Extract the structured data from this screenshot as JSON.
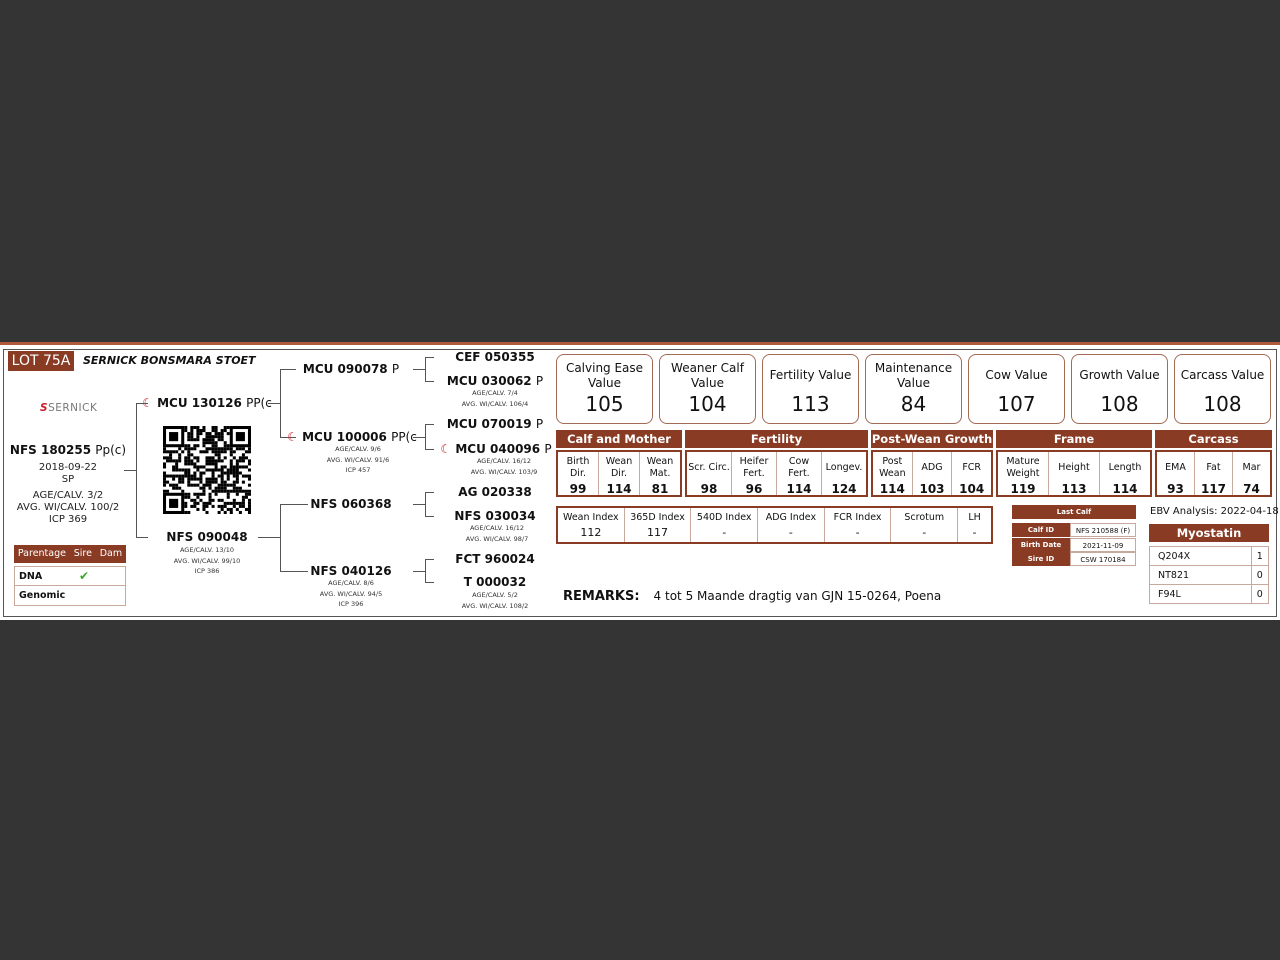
{
  "header": {
    "lot": "LOT 75A",
    "title": "SERNICK BONSMARA STOET",
    "logo": "SERNICK"
  },
  "colors": {
    "brand": "#8a3b24",
    "check": "#3aa62a"
  },
  "animal": {
    "id": "NFS 180255",
    "suffix": "Pp(c)",
    "dob": "2018-09-22",
    "type": "SP",
    "age_calv": "AGE/CALV. 3/2",
    "avg": "AVG. WI/CALV. 100/2",
    "icp": "ICP 369"
  },
  "parentage": {
    "headers": [
      "Parentage",
      "Sire",
      "Dam"
    ],
    "rows": [
      {
        "label": "DNA",
        "sire": "✔",
        "dam": ""
      },
      {
        "label": "Genomic",
        "sire": "",
        "dam": ""
      }
    ]
  },
  "pedigree": {
    "sire": {
      "id": "MCU 130126",
      "suffix": "PP(c",
      "icon": "sernick-mark-icon"
    },
    "dam": {
      "id": "NFS 090048",
      "l1": "AGE/CALV. 13/10",
      "l2": "AVG. WI/CALV. 99/10",
      "l3": "ICP 386"
    },
    "ss": {
      "id": "MCU 090078",
      "suffix": "P"
    },
    "sd": {
      "id": "MCU 100006",
      "suffix": "PP(c",
      "l1": "AGE/CALV. 9/6",
      "l2": "AVG. WI/CALV. 91/6",
      "l3": "ICP 457"
    },
    "ds": {
      "id": "NFS 060368"
    },
    "dd": {
      "id": "NFS 040126",
      "l1": "AGE/CALV. 8/6",
      "l2": "AVG. WI/CALV. 94/5",
      "l3": "ICP 396"
    },
    "sss": {
      "id": "CEF 050355"
    },
    "ssd": {
      "id": "MCU 030062",
      "suffix": "P",
      "l1": "AGE/CALV. 7/4",
      "l2": "AVG. WI/CALV. 106/4"
    },
    "sds": {
      "id": "MCU 070019",
      "suffix": "P"
    },
    "sdd": {
      "id": "MCU 040096",
      "suffix": "P",
      "l1": "AGE/CALV. 16/12",
      "l2": "AVG. WI/CALV. 103/9"
    },
    "dss": {
      "id": "AG 020338"
    },
    "dsd": {
      "id": "NFS 030034",
      "l1": "AGE/CALV. 16/12",
      "l2": "AVG. WI/CALV. 98/7"
    },
    "dds": {
      "id": "FCT 960024"
    },
    "ddd": {
      "id": "T 000032",
      "l1": "AGE/CALV. 5/2",
      "l2": "AVG. WI/CALV. 108/2"
    }
  },
  "values": [
    {
      "t": "Calving Ease Value",
      "v": "105"
    },
    {
      "t": "Weaner Calf Value",
      "v": "104"
    },
    {
      "t": "Fertility Value",
      "v": "113"
    },
    {
      "t": "Maintenance Value",
      "v": "84"
    },
    {
      "t": "Cow Value",
      "v": "107"
    },
    {
      "t": "Growth Value",
      "v": "108"
    },
    {
      "t": "Carcass Value",
      "v": "108"
    }
  ],
  "groups": [
    {
      "name": "Calf and Mother",
      "cells": [
        {
          "h": "Birth Dir.",
          "v": "99"
        },
        {
          "h": "Wean Dir.",
          "v": "114"
        },
        {
          "h": "Wean Mat.",
          "v": "81"
        }
      ]
    },
    {
      "name": "Fertility",
      "cells": [
        {
          "h": "Scr. Circ.",
          "v": "98"
        },
        {
          "h": "Heifer Fert.",
          "v": "96"
        },
        {
          "h": "Cow Fert.",
          "v": "114"
        },
        {
          "h": "Longev.",
          "v": "124"
        }
      ]
    },
    {
      "name": "Post-Wean Growth",
      "cells": [
        {
          "h": "Post Wean",
          "v": "114"
        },
        {
          "h": "ADG",
          "v": "103"
        },
        {
          "h": "FCR",
          "v": "104"
        }
      ]
    },
    {
      "name": "Frame",
      "cells": [
        {
          "h": "Mature Weight",
          "v": "119"
        },
        {
          "h": "Height",
          "v": "113"
        },
        {
          "h": "Length",
          "v": "114"
        }
      ]
    },
    {
      "name": "Carcass",
      "cells": [
        {
          "h": "EMA",
          "v": "93"
        },
        {
          "h": "Fat",
          "v": "117"
        },
        {
          "h": "Mar",
          "v": "74"
        }
      ]
    }
  ],
  "indexes": [
    {
      "h": "Wean Index",
      "v": "112"
    },
    {
      "h": "365D Index",
      "v": "117"
    },
    {
      "h": "540D Index",
      "v": "-"
    },
    {
      "h": "ADG Index",
      "v": "-"
    },
    {
      "h": "FCR Index",
      "v": "-"
    },
    {
      "h": "Scrotum",
      "v": "-"
    },
    {
      "h": "LH",
      "v": "-"
    }
  ],
  "last_calf": {
    "title": "Last Calf",
    "rows": [
      {
        "k": "Calf ID",
        "v": "NFS 210588 (F)"
      },
      {
        "k": "Birth Date",
        "v": "2021-11-09"
      },
      {
        "k": "Sire ID",
        "v": "CSW 170184"
      }
    ]
  },
  "ebv": "EBV Analysis: 2022-04-18",
  "myostatin": {
    "title": "Myostatin",
    "rows": [
      {
        "k": "Q204X",
        "v": "1"
      },
      {
        "k": "NT821",
        "v": "0"
      },
      {
        "k": "F94L",
        "v": "0"
      }
    ]
  },
  "remarks": {
    "label": "REMARKS:",
    "text": "4 tot 5 Maande dragtig van GJN 15-0264, Poena"
  }
}
